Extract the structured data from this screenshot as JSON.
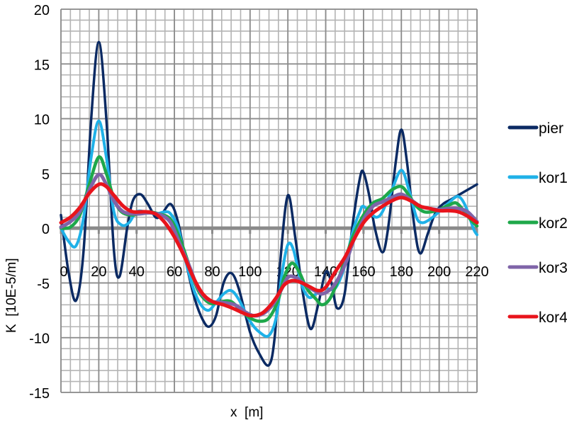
{
  "chart_data": {
    "type": "line",
    "title": "",
    "xlabel": "x  [m]",
    "ylabel": "K  [10E-5/m]",
    "xlim": [
      0,
      220
    ],
    "ylim": [
      -15,
      20
    ],
    "x_ticks": [
      0,
      20,
      40,
      60,
      80,
      100,
      120,
      140,
      160,
      180,
      200,
      220
    ],
    "y_ticks": [
      20,
      15,
      10,
      5,
      0,
      -5,
      -10,
      -15
    ],
    "x_minor_step": 5,
    "y_minor_step": 1,
    "grid": true,
    "legend_position": "right",
    "series": [
      {
        "name": "pier",
        "color": "#0b2a63",
        "width": 3.5,
        "points": [
          [
            0,
            1.2
          ],
          [
            4,
            -4
          ],
          [
            8,
            -6.6
          ],
          [
            12,
            -2
          ],
          [
            16,
            10
          ],
          [
            20,
            17
          ],
          [
            24,
            10
          ],
          [
            28,
            -2
          ],
          [
            31,
            -4.4
          ],
          [
            35,
            0
          ],
          [
            38,
            2.5
          ],
          [
            42,
            3.1
          ],
          [
            46,
            2.2
          ],
          [
            50,
            1.0
          ],
          [
            53,
            1.2
          ],
          [
            58,
            2.2
          ],
          [
            62,
            0.5
          ],
          [
            66,
            -3
          ],
          [
            70,
            -6
          ],
          [
            74,
            -8
          ],
          [
            78,
            -9
          ],
          [
            82,
            -8
          ],
          [
            86,
            -5
          ],
          [
            90,
            -4.1
          ],
          [
            94,
            -5.5
          ],
          [
            100,
            -9.5
          ],
          [
            105,
            -11.5
          ],
          [
            110,
            -12.5
          ],
          [
            113,
            -10
          ],
          [
            116,
            -3
          ],
          [
            120,
            3
          ],
          [
            124,
            -1
          ],
          [
            128,
            -6
          ],
          [
            132,
            -9.2
          ],
          [
            136,
            -7
          ],
          [
            140,
            -4
          ],
          [
            143,
            -5
          ],
          [
            146,
            -7.3
          ],
          [
            150,
            -6
          ],
          [
            154,
            0
          ],
          [
            158,
            4.5
          ],
          [
            160,
            5.1
          ],
          [
            163,
            3
          ],
          [
            166,
            0
          ],
          [
            170,
            -2.2
          ],
          [
            173,
            0
          ],
          [
            177,
            6
          ],
          [
            180,
            9
          ],
          [
            183,
            6
          ],
          [
            187,
            0
          ],
          [
            190,
            -2.3
          ],
          [
            194,
            -0.5
          ],
          [
            198,
            1.4
          ],
          [
            202,
            2.2
          ],
          [
            206,
            2.6
          ],
          [
            210,
            3
          ],
          [
            215,
            3.5
          ],
          [
            220,
            4
          ]
        ]
      },
      {
        "name": "kor1",
        "color": "#1fb1e8",
        "width": 4,
        "points": [
          [
            0,
            0
          ],
          [
            4,
            -1.2
          ],
          [
            8,
            -1.6
          ],
          [
            12,
            1
          ],
          [
            16,
            6.5
          ],
          [
            20,
            9.8
          ],
          [
            24,
            6.5
          ],
          [
            28,
            1.5
          ],
          [
            32,
            0.3
          ],
          [
            36,
            0.5
          ],
          [
            40,
            1.5
          ],
          [
            45,
            1.5
          ],
          [
            50,
            1.3
          ],
          [
            55,
            1.5
          ],
          [
            58,
            1.3
          ],
          [
            62,
            0
          ],
          [
            66,
            -3
          ],
          [
            70,
            -5.5
          ],
          [
            74,
            -7
          ],
          [
            78,
            -7.5
          ],
          [
            82,
            -6.8
          ],
          [
            86,
            -6
          ],
          [
            90,
            -5.7
          ],
          [
            94,
            -6.5
          ],
          [
            100,
            -8.5
          ],
          [
            105,
            -9.5
          ],
          [
            110,
            -9.8
          ],
          [
            114,
            -8
          ],
          [
            117,
            -4
          ],
          [
            120,
            -1.5
          ],
          [
            123,
            -2
          ],
          [
            127,
            -5
          ],
          [
            131,
            -6.3
          ],
          [
            135,
            -6
          ],
          [
            140,
            -5.5
          ],
          [
            145,
            -5.5
          ],
          [
            150,
            -3.5
          ],
          [
            154,
            -0.5
          ],
          [
            158,
            1.5
          ],
          [
            160,
            2
          ],
          [
            164,
            1.3
          ],
          [
            167,
            1
          ],
          [
            170,
            1.5
          ],
          [
            175,
            3.5
          ],
          [
            180,
            5.3
          ],
          [
            184,
            3.5
          ],
          [
            188,
            1
          ],
          [
            191,
            0.5
          ],
          [
            195,
            0.8
          ],
          [
            200,
            1.5
          ],
          [
            205,
            2.3
          ],
          [
            210,
            2.9
          ],
          [
            214,
            2
          ],
          [
            218,
            0
          ],
          [
            220,
            -0.6
          ]
        ]
      },
      {
        "name": "kor2",
        "color": "#1ea84a",
        "width": 4.5,
        "points": [
          [
            0,
            0
          ],
          [
            5,
            0.1
          ],
          [
            10,
            1.2
          ],
          [
            15,
            4
          ],
          [
            20,
            6.5
          ],
          [
            24,
            5
          ],
          [
            28,
            2.7
          ],
          [
            32,
            1.5
          ],
          [
            38,
            1.2
          ],
          [
            45,
            1.5
          ],
          [
            52,
            1.3
          ],
          [
            58,
            0.8
          ],
          [
            63,
            -1
          ],
          [
            68,
            -3.5
          ],
          [
            72,
            -5.5
          ],
          [
            76,
            -6.5
          ],
          [
            80,
            -6.9
          ],
          [
            85,
            -6.7
          ],
          [
            90,
            -6.7
          ],
          [
            95,
            -7.5
          ],
          [
            100,
            -8.2
          ],
          [
            105,
            -8.5
          ],
          [
            110,
            -8.2
          ],
          [
            115,
            -6.5
          ],
          [
            118,
            -4.5
          ],
          [
            122,
            -3.2
          ],
          [
            126,
            -4
          ],
          [
            130,
            -5.5
          ],
          [
            135,
            -6.5
          ],
          [
            138,
            -7
          ],
          [
            142,
            -6.5
          ],
          [
            146,
            -5
          ],
          [
            150,
            -3
          ],
          [
            155,
            -0.5
          ],
          [
            160,
            1.2
          ],
          [
            165,
            2.3
          ],
          [
            170,
            2.7
          ],
          [
            175,
            3.5
          ],
          [
            180,
            3.8
          ],
          [
            184,
            3
          ],
          [
            188,
            2
          ],
          [
            192,
            1.5
          ],
          [
            196,
            1.5
          ],
          [
            200,
            1.7
          ],
          [
            205,
            2.1
          ],
          [
            209,
            2.3
          ],
          [
            213,
            1.6
          ],
          [
            217,
            0.7
          ],
          [
            220,
            0.2
          ]
        ]
      },
      {
        "name": "kor3",
        "color": "#7f64a8",
        "width": 5,
        "points": [
          [
            0,
            0.1
          ],
          [
            5,
            0.6
          ],
          [
            10,
            1.5
          ],
          [
            15,
            3.5
          ],
          [
            20,
            4.9
          ],
          [
            24,
            4
          ],
          [
            28,
            2.5
          ],
          [
            33,
            1.5
          ],
          [
            40,
            1.3
          ],
          [
            47,
            1.4
          ],
          [
            53,
            1.2
          ],
          [
            58,
            0.5
          ],
          [
            63,
            -1.5
          ],
          [
            68,
            -3.5
          ],
          [
            72,
            -5.3
          ],
          [
            76,
            -6.3
          ],
          [
            80,
            -6.7
          ],
          [
            86,
            -6.8
          ],
          [
            92,
            -7
          ],
          [
            97,
            -7.6
          ],
          [
            102,
            -8
          ],
          [
            107,
            -7.8
          ],
          [
            112,
            -7
          ],
          [
            116,
            -5.8
          ],
          [
            120,
            -4.5
          ],
          [
            124,
            -4.5
          ],
          [
            128,
            -5
          ],
          [
            133,
            -5.6
          ],
          [
            138,
            -6
          ],
          [
            143,
            -5.5
          ],
          [
            147,
            -4.5
          ],
          [
            151,
            -3
          ],
          [
            155,
            -1
          ],
          [
            160,
            0.8
          ],
          [
            165,
            2
          ],
          [
            170,
            2.4
          ],
          [
            175,
            2.8
          ],
          [
            180,
            3.1
          ],
          [
            185,
            2.6
          ],
          [
            190,
            2
          ],
          [
            195,
            1.8
          ],
          [
            200,
            1.7
          ],
          [
            205,
            1.8
          ],
          [
            210,
            1.8
          ],
          [
            215,
            1.5
          ],
          [
            220,
            0.6
          ]
        ]
      },
      {
        "name": "kor4",
        "color": "#e8141c",
        "width": 5,
        "points": [
          [
            0,
            0.5
          ],
          [
            5,
            1.0
          ],
          [
            10,
            1.9
          ],
          [
            15,
            3.2
          ],
          [
            20,
            4
          ],
          [
            24,
            3.8
          ],
          [
            28,
            3
          ],
          [
            33,
            2
          ],
          [
            38,
            1.5
          ],
          [
            45,
            1.5
          ],
          [
            50,
            1.3
          ],
          [
            55,
            0.5
          ],
          [
            60,
            -0.8
          ],
          [
            65,
            -2.5
          ],
          [
            70,
            -4.5
          ],
          [
            75,
            -6
          ],
          [
            80,
            -6.7
          ],
          [
            86,
            -7
          ],
          [
            92,
            -7.4
          ],
          [
            97,
            -7.8
          ],
          [
            101,
            -8
          ],
          [
            106,
            -7.8
          ],
          [
            110,
            -7.2
          ],
          [
            114,
            -6.3
          ],
          [
            118,
            -5.2
          ],
          [
            122,
            -4.8
          ],
          [
            126,
            -4.9
          ],
          [
            131,
            -5.3
          ],
          [
            136,
            -5.7
          ],
          [
            140,
            -5.4
          ],
          [
            145,
            -4
          ],
          [
            150,
            -2.7
          ],
          [
            155,
            -1
          ],
          [
            160,
            0.5
          ],
          [
            165,
            1.4
          ],
          [
            170,
            2
          ],
          [
            175,
            2.5
          ],
          [
            180,
            2.8
          ],
          [
            185,
            2.5
          ],
          [
            190,
            2
          ],
          [
            195,
            1.8
          ],
          [
            200,
            1.6
          ],
          [
            205,
            1.6
          ],
          [
            210,
            1.5
          ],
          [
            215,
            1.1
          ],
          [
            220,
            0.5
          ]
        ]
      }
    ]
  },
  "legend": {
    "items": [
      {
        "label": "pier"
      },
      {
        "label": "kor1"
      },
      {
        "label": "kor2"
      },
      {
        "label": "kor3"
      },
      {
        "label": "kor4"
      }
    ]
  }
}
